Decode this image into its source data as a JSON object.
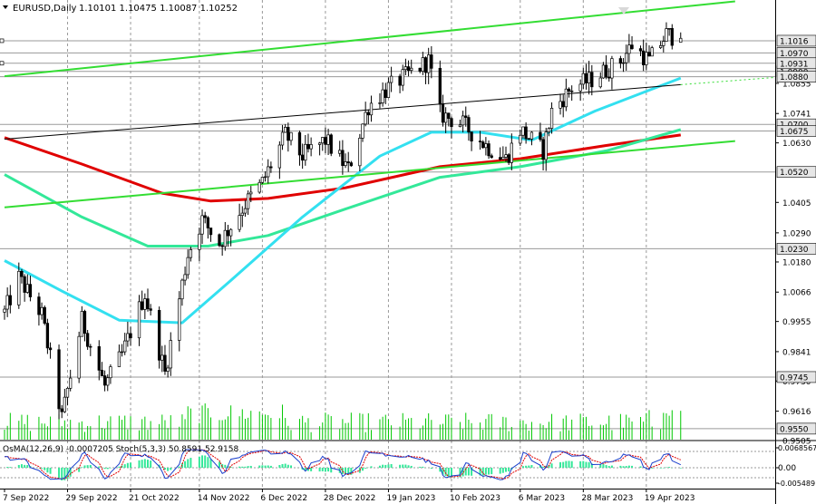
{
  "header": {
    "symbol": "EURUSD,Daily",
    "ohlc": "1.10101 1.10475 1.10087 1.10252"
  },
  "colors": {
    "candle": "#000000",
    "volume": "#00c800",
    "ema_200": "#e00000",
    "ema_144": "#33e899",
    "ema_50": "#33e0f0",
    "channel": "#33dd33",
    "grid": "#9a9a9a",
    "price_box": "#e6e6e6",
    "osma_bar": "#33e899",
    "stoch_main": "#1a3fcc",
    "stoch_signal": "#e00000"
  },
  "chart_data": [
    {
      "type": "candlestick",
      "symbol": "EURUSD",
      "timeframe": "Daily",
      "last_bar": {
        "open": 1.10101,
        "high": 1.10475,
        "low": 1.10087,
        "close": 1.10252
      },
      "ylim": [
        0.9505,
        1.117
      ],
      "y_tick_labels": [
        "1.0855",
        "1.0741",
        "1.0630",
        "1.0405",
        "1.0290",
        "1.0180",
        "1.0066",
        "0.9955",
        "0.9841",
        "0.9730",
        "0.9616",
        "0.9505"
      ],
      "x_tick_labels": [
        "7 Sep 2022",
        "29 Sep 2022",
        "21 Oct 2022",
        "14 Nov 2022",
        "6 Dec 2022",
        "28 Dec 2022",
        "19 Jan 2023",
        "10 Feb 2023",
        "6 Mar 2023",
        "28 Mar 2023",
        "19 Apr 2023"
      ],
      "horizontal_levels": [
        {
          "label": "1.0900",
          "value": 1.09
        },
        {
          "label": "1.1016",
          "value": 1.1016
        },
        {
          "label": "1.0970",
          "value": 1.097
        },
        {
          "label": "1.0931",
          "value": 1.0931
        },
        {
          "label": "1.0880",
          "value": 1.088
        },
        {
          "label": "1.0700",
          "value": 1.07
        },
        {
          "label": "1.0675",
          "value": 1.0675
        },
        {
          "label": "1.0520",
          "value": 1.052
        },
        {
          "label": "1.0230",
          "value": 1.023
        },
        {
          "label": "0.9745",
          "value": 0.9745
        },
        {
          "label": "0.9550",
          "value": 0.955
        }
      ],
      "waypoints": [
        {
          "date": "2022-09-07",
          "close": 0.999
        },
        {
          "date": "2022-09-12",
          "close": 1.012
        },
        {
          "date": "2022-09-20",
          "close": 0.998
        },
        {
          "date": "2022-09-27",
          "close": 0.959
        },
        {
          "date": "2022-10-04",
          "close": 0.996
        },
        {
          "date": "2022-10-12",
          "close": 0.971
        },
        {
          "date": "2022-10-18",
          "close": 0.983
        },
        {
          "date": "2022-10-26",
          "close": 1.006
        },
        {
          "date": "2022-11-02",
          "close": 0.976
        },
        {
          "date": "2022-11-10",
          "close": 1.021
        },
        {
          "date": "2022-11-15",
          "close": 1.034
        },
        {
          "date": "2022-11-21",
          "close": 1.025
        },
        {
          "date": "2022-11-30",
          "close": 1.04
        },
        {
          "date": "2022-12-06",
          "close": 1.048
        },
        {
          "date": "2022-12-14",
          "close": 1.066
        },
        {
          "date": "2022-12-20",
          "close": 1.058
        },
        {
          "date": "2022-12-28",
          "close": 1.064
        },
        {
          "date": "2023-01-05",
          "close": 1.053
        },
        {
          "date": "2023-01-12",
          "close": 1.077
        },
        {
          "date": "2023-01-18",
          "close": 1.083
        },
        {
          "date": "2023-01-26",
          "close": 1.089
        },
        {
          "date": "2023-02-02",
          "close": 1.094
        },
        {
          "date": "2023-02-06",
          "close": 1.074
        },
        {
          "date": "2023-02-14",
          "close": 1.07
        },
        {
          "date": "2023-02-22",
          "close": 1.062
        },
        {
          "date": "2023-03-01",
          "close": 1.057
        },
        {
          "date": "2023-03-06",
          "close": 1.068
        },
        {
          "date": "2023-03-14",
          "close": 1.06
        },
        {
          "date": "2023-03-17",
          "close": 1.075
        },
        {
          "date": "2023-03-24",
          "close": 1.084
        },
        {
          "date": "2023-03-31",
          "close": 1.087
        },
        {
          "date": "2023-04-10",
          "close": 1.094
        },
        {
          "date": "2023-04-14",
          "close": 1.1
        },
        {
          "date": "2023-04-20",
          "close": 1.094
        },
        {
          "date": "2023-04-26",
          "close": 1.104
        },
        {
          "date": "2023-05-01",
          "close": 1.1025
        }
      ],
      "indicators": [
        {
          "type": "ema",
          "period": 200,
          "color": "#e00000",
          "points": [
            {
              "date": "2022-09-07",
              "value": 1.065
            },
            {
              "date": "2022-10-04",
              "value": 1.055
            },
            {
              "date": "2022-11-01",
              "value": 1.044
            },
            {
              "date": "2022-11-18",
              "value": 1.041
            },
            {
              "date": "2022-12-08",
              "value": 1.042
            },
            {
              "date": "2023-01-04",
              "value": 1.046
            },
            {
              "date": "2023-02-06",
              "value": 1.054
            },
            {
              "date": "2023-03-06",
              "value": 1.057
            },
            {
              "date": "2023-04-05",
              "value": 1.062
            },
            {
              "date": "2023-05-01",
              "value": 1.066
            }
          ]
        },
        {
          "type": "ema",
          "period": 144,
          "color": "#33e899",
          "points": [
            {
              "date": "2022-09-07",
              "value": 1.051
            },
            {
              "date": "2022-10-04",
              "value": 1.035
            },
            {
              "date": "2022-10-27",
              "value": 1.024
            },
            {
              "date": "2022-11-17",
              "value": 1.024
            },
            {
              "date": "2022-12-08",
              "value": 1.028
            },
            {
              "date": "2023-01-04",
              "value": 1.038
            },
            {
              "date": "2023-02-06",
              "value": 1.05
            },
            {
              "date": "2023-03-06",
              "value": 1.054
            },
            {
              "date": "2023-04-05",
              "value": 1.06
            },
            {
              "date": "2023-05-01",
              "value": 1.068
            }
          ]
        },
        {
          "type": "ema",
          "period": 50,
          "color": "#33e0f0",
          "points": [
            {
              "date": "2022-09-07",
              "value": 1.0185
            },
            {
              "date": "2022-09-27",
              "value": 1.007
            },
            {
              "date": "2022-10-17",
              "value": 0.996
            },
            {
              "date": "2022-11-08",
              "value": 0.995
            },
            {
              "date": "2022-11-25",
              "value": 1.011
            },
            {
              "date": "2022-12-20",
              "value": 1.035
            },
            {
              "date": "2023-01-16",
              "value": 1.058
            },
            {
              "date": "2023-02-03",
              "value": 1.067
            },
            {
              "date": "2023-02-20",
              "value": 1.067
            },
            {
              "date": "2023-03-10",
              "value": 1.064
            },
            {
              "date": "2023-04-01",
              "value": 1.075
            },
            {
              "date": "2023-05-01",
              "value": 1.0875
            }
          ]
        },
        {
          "type": "trendline",
          "color": "#33dd33",
          "points": [
            {
              "date": "2022-09-07",
              "value": 1.0882
            },
            {
              "date": "2023-05-20",
              "value": 1.1165
            }
          ]
        },
        {
          "type": "trendline",
          "color": "#33dd33",
          "points": [
            {
              "date": "2022-09-07",
              "value": 1.0386
            },
            {
              "date": "2023-05-20",
              "value": 1.0637
            }
          ]
        },
        {
          "type": "trendline",
          "color": "#000000",
          "points": [
            {
              "date": "2022-09-07",
              "value": 1.0644
            },
            {
              "date": "2023-05-01",
              "value": 1.085
            }
          ]
        }
      ]
    },
    {
      "type": "bar",
      "series": [
        {
          "name": "Volumes"
        }
      ],
      "color": "#00c800",
      "labels": []
    },
    {
      "type": "line",
      "label": "OsMA(12,26,9) -0.0007205  Stoch(5,3,3) 50.8591 52.9158",
      "osma": {
        "name": "OsMA(12,26,9)",
        "value": -0.0007205
      },
      "stoch": {
        "name": "Stoch(5,3,3)",
        "main": 50.8591,
        "signal": 52.9158
      },
      "y_tick_labels": [
        "0.0068567",
        "0.00",
        "-0.005489"
      ],
      "x_tick_labels": [
        "7 Sep 2022",
        "29 Sep 2022",
        "21 Oct 2022",
        "14 Nov 2022",
        "6 Dec 2022",
        "28 Dec 2022",
        "19 Jan 2023",
        "10 Feb 2023",
        "6 Mar 2023",
        "28 Mar 2023",
        "19 Apr 2023"
      ]
    }
  ]
}
